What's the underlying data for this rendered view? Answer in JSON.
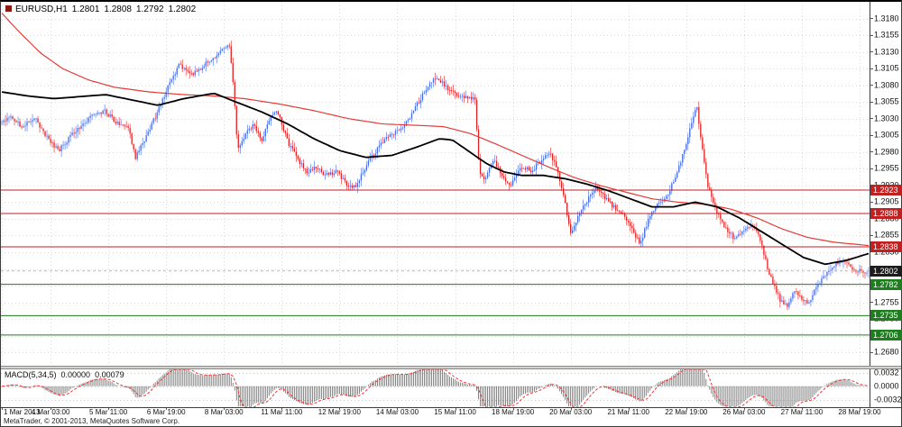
{
  "window": {
    "symbol": "EURUSD,H1",
    "open": "1.2801",
    "high": "1.2808",
    "low": "1.2792",
    "close": "1.2802"
  },
  "status_bar": {
    "copyright": "MetaTrader, © 2001-2013, MetaQuotes Software Corp."
  },
  "indicator": {
    "label": "MACD(5,34,5)",
    "value_main": "0.00000",
    "value_signal": "0.00079",
    "axis_labels": [
      {
        "value": 0.0032,
        "text": "0.0032"
      },
      {
        "value": 0.0,
        "text": "0.0000"
      },
      {
        "value": -0.0032,
        "text": "-0.0032"
      }
    ]
  },
  "colors": {
    "bull": "#4169e1",
    "bear": "#e02020",
    "ma_red": "#e53935",
    "ma_black": "#000000",
    "resistance": "#c02020",
    "support": "#1e7d1e",
    "current_tag_bg": "#1c1c1c",
    "grid": "#d9d9d9",
    "macd_histogram": "#666666",
    "macd_signal": "#ff3030"
  },
  "price_axis": {
    "labels": [
      "1.3180",
      "1.3155",
      "1.3130",
      "1.3105",
      "1.3080",
      "1.3055",
      "1.3030",
      "1.3005",
      "1.2980",
      "1.2955",
      "1.2930",
      "1.2905",
      "1.2880",
      "1.2855",
      "1.2830",
      "1.2805",
      "1.2780",
      "1.2755",
      "1.2730",
      "1.2705",
      "1.2680"
    ]
  },
  "time_axis": {
    "labels": [
      "1 Mar 2013",
      "4 Mar 03:00",
      "5 Mar 11:00",
      "6 Mar 19:00",
      "8 Mar 03:00",
      "11 Mar 11:00",
      "12 Mar 19:00",
      "14 Mar 03:00",
      "15 Mar 11:00",
      "18 Mar 19:00",
      "20 Mar 03:00",
      "21 Mar 11:00",
      "22 Mar 19:00",
      "26 Mar 03:00",
      "27 Mar 11:00",
      "28 Mar 19:00"
    ]
  },
  "levels": {
    "resistance": [
      {
        "price": 1.2923
      },
      {
        "price": 1.2888
      },
      {
        "price": 1.2838
      }
    ],
    "support": [
      {
        "price": 1.2782
      },
      {
        "price": 1.2735
      },
      {
        "price": 1.2706
      }
    ],
    "current": {
      "price": 1.2802
    }
  },
  "chart_data": {
    "type": "candlestick",
    "title": "EURUSD,H1",
    "symbol": "EURUSD",
    "timeframe": "H1",
    "current_bar": {
      "open": 1.2801,
      "high": 1.2808,
      "low": 1.2792,
      "close": 1.2802
    },
    "bars_total": 481,
    "seed": 20130328,
    "ylim": [
      1.266,
      1.3205
    ],
    "grid": true,
    "time_tick_bars": [
      0,
      27,
      59,
      91,
      123,
      155,
      187,
      219,
      251,
      283,
      315,
      347,
      379,
      411,
      443,
      475
    ],
    "price_path": [
      [
        0.0,
        1.3022
      ],
      [
        0.01,
        1.3035
      ],
      [
        0.022,
        1.3018
      ],
      [
        0.04,
        1.3028
      ],
      [
        0.055,
        1.2995
      ],
      [
        0.065,
        1.2982
      ],
      [
        0.08,
        1.3005
      ],
      [
        0.1,
        1.303
      ],
      [
        0.118,
        1.3042
      ],
      [
        0.132,
        1.3025
      ],
      [
        0.146,
        1.3018
      ],
      [
        0.154,
        1.2972
      ],
      [
        0.164,
        1.2998
      ],
      [
        0.178,
        1.3035
      ],
      [
        0.192,
        1.308
      ],
      [
        0.205,
        1.3112
      ],
      [
        0.218,
        1.3095
      ],
      [
        0.232,
        1.3108
      ],
      [
        0.244,
        1.3122
      ],
      [
        0.256,
        1.3135
      ],
      [
        0.263,
        1.314
      ],
      [
        0.268,
        1.3062
      ],
      [
        0.272,
        1.2982
      ],
      [
        0.281,
        1.3008
      ],
      [
        0.291,
        1.3022
      ],
      [
        0.3,
        1.2998
      ],
      [
        0.31,
        1.3035
      ],
      [
        0.318,
        1.304
      ],
      [
        0.33,
        1.2995
      ],
      [
        0.342,
        1.2968
      ],
      [
        0.352,
        1.2948
      ],
      [
        0.362,
        1.2958
      ],
      [
        0.374,
        1.2945
      ],
      [
        0.386,
        1.2952
      ],
      [
        0.398,
        1.2932
      ],
      [
        0.408,
        1.2928
      ],
      [
        0.42,
        1.2958
      ],
      [
        0.435,
        1.2988
      ],
      [
        0.45,
        1.3008
      ],
      [
        0.462,
        1.3015
      ],
      [
        0.475,
        1.3042
      ],
      [
        0.49,
        1.3075
      ],
      [
        0.5,
        1.3092
      ],
      [
        0.512,
        1.3078
      ],
      [
        0.53,
        1.3062
      ],
      [
        0.546,
        1.3058
      ],
      [
        0.551,
        1.2948
      ],
      [
        0.558,
        1.294
      ],
      [
        0.568,
        1.2968
      ],
      [
        0.578,
        1.2942
      ],
      [
        0.588,
        1.2932
      ],
      [
        0.6,
        1.2958
      ],
      [
        0.612,
        1.2952
      ],
      [
        0.622,
        1.2968
      ],
      [
        0.632,
        1.2982
      ],
      [
        0.64,
        1.2955
      ],
      [
        0.65,
        1.2905
      ],
      [
        0.656,
        1.2858
      ],
      [
        0.666,
        1.2888
      ],
      [
        0.676,
        1.2908
      ],
      [
        0.686,
        1.2928
      ],
      [
        0.696,
        1.2912
      ],
      [
        0.708,
        1.2895
      ],
      [
        0.718,
        1.2888
      ],
      [
        0.728,
        1.2862
      ],
      [
        0.736,
        1.2842
      ],
      [
        0.746,
        1.2878
      ],
      [
        0.756,
        1.2902
      ],
      [
        0.766,
        1.2912
      ],
      [
        0.776,
        1.2938
      ],
      [
        0.788,
        1.2985
      ],
      [
        0.797,
        1.3032
      ],
      [
        0.802,
        1.3045
      ],
      [
        0.808,
        1.2985
      ],
      [
        0.814,
        1.2932
      ],
      [
        0.824,
        1.2892
      ],
      [
        0.834,
        1.2868
      ],
      [
        0.844,
        1.2852
      ],
      [
        0.854,
        1.2858
      ],
      [
        0.864,
        1.2872
      ],
      [
        0.872,
        1.2862
      ],
      [
        0.88,
        1.2822
      ],
      [
        0.888,
        1.2788
      ],
      [
        0.898,
        1.2758
      ],
      [
        0.906,
        1.2748
      ],
      [
        0.914,
        1.2772
      ],
      [
        0.922,
        1.2762
      ],
      [
        0.93,
        1.2752
      ],
      [
        0.94,
        1.2778
      ],
      [
        0.95,
        1.2795
      ],
      [
        0.96,
        1.2812
      ],
      [
        0.972,
        1.2818
      ],
      [
        0.982,
        1.2805
      ],
      [
        0.992,
        1.28
      ],
      [
        1.0,
        1.2802
      ]
    ],
    "ma_red": [
      [
        0.0,
        1.3188
      ],
      [
        0.02,
        1.316
      ],
      [
        0.045,
        1.3128
      ],
      [
        0.07,
        1.3105
      ],
      [
        0.1,
        1.3088
      ],
      [
        0.13,
        1.3077
      ],
      [
        0.17,
        1.307
      ],
      [
        0.21,
        1.3066
      ],
      [
        0.245,
        1.3064
      ],
      [
        0.28,
        1.306
      ],
      [
        0.32,
        1.3052
      ],
      [
        0.36,
        1.3042
      ],
      [
        0.4,
        1.303
      ],
      [
        0.44,
        1.3022
      ],
      [
        0.48,
        1.302
      ],
      [
        0.51,
        1.3018
      ],
      [
        0.54,
        1.3008
      ],
      [
        0.57,
        1.2992
      ],
      [
        0.6,
        1.2975
      ],
      [
        0.63,
        1.2958
      ],
      [
        0.66,
        1.2942
      ],
      [
        0.69,
        1.293
      ],
      [
        0.72,
        1.292
      ],
      [
        0.75,
        1.291
      ],
      [
        0.78,
        1.2905
      ],
      [
        0.81,
        1.2902
      ],
      [
        0.84,
        1.2895
      ],
      [
        0.87,
        1.2882
      ],
      [
        0.9,
        1.2865
      ],
      [
        0.93,
        1.2852
      ],
      [
        0.96,
        1.2845
      ],
      [
        1.0,
        1.284
      ]
    ],
    "ma_black": [
      [
        0.0,
        1.307
      ],
      [
        0.03,
        1.3064
      ],
      [
        0.06,
        1.306
      ],
      [
        0.09,
        1.3063
      ],
      [
        0.12,
        1.3066
      ],
      [
        0.15,
        1.3058
      ],
      [
        0.18,
        1.305
      ],
      [
        0.21,
        1.306
      ],
      [
        0.245,
        1.3068
      ],
      [
        0.27,
        1.3055
      ],
      [
        0.3,
        1.304
      ],
      [
        0.33,
        1.3022
      ],
      [
        0.36,
        1.3
      ],
      [
        0.39,
        1.2982
      ],
      [
        0.42,
        1.2972
      ],
      [
        0.45,
        1.2975
      ],
      [
        0.48,
        1.2988
      ],
      [
        0.505,
        1.3
      ],
      [
        0.52,
        1.2998
      ],
      [
        0.54,
        1.298
      ],
      [
        0.56,
        1.2962
      ],
      [
        0.58,
        1.295
      ],
      [
        0.6,
        1.2945
      ],
      [
        0.625,
        1.2945
      ],
      [
        0.65,
        1.294
      ],
      [
        0.675,
        1.2932
      ],
      [
        0.7,
        1.2922
      ],
      [
        0.725,
        1.291
      ],
      [
        0.75,
        1.2898
      ],
      [
        0.775,
        1.2898
      ],
      [
        0.8,
        1.2905
      ],
      [
        0.825,
        1.2898
      ],
      [
        0.85,
        1.2882
      ],
      [
        0.875,
        1.2862
      ],
      [
        0.9,
        1.2842
      ],
      [
        0.925,
        1.2822
      ],
      [
        0.95,
        1.2812
      ],
      [
        0.975,
        1.2818
      ],
      [
        1.0,
        1.2828
      ]
    ],
    "macd": {
      "fast": 5,
      "slow": 34,
      "signal": 5,
      "ylim": [
        -0.005,
        0.004
      ]
    }
  }
}
